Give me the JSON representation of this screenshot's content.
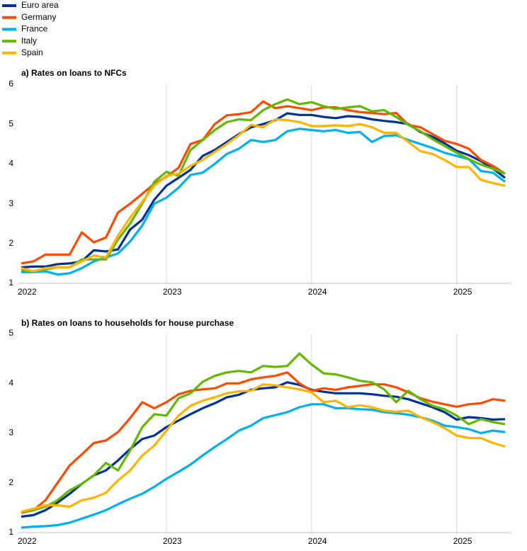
{
  "legend": [
    {
      "name": "Euro area",
      "color": "#003299"
    },
    {
      "name": "Germany",
      "color": "#ff4b00"
    },
    {
      "name": "France",
      "color": "#00b1ea"
    },
    {
      "name": "Italy",
      "color": "#65b800"
    },
    {
      "name": "Spain",
      "color": "#ffb400"
    }
  ],
  "chart_data": [
    {
      "type": "line",
      "title": "a) Rates on loans to NFCs",
      "categories": [
        "2022",
        null,
        null,
        null,
        null,
        null,
        null,
        null,
        null,
        null,
        null,
        null,
        "2023",
        null,
        null,
        null,
        null,
        null,
        null,
        null,
        null,
        null,
        null,
        null,
        "2024",
        null,
        null,
        null,
        null,
        null,
        null,
        null,
        null,
        null,
        null,
        null,
        "2025",
        null,
        null,
        null,
        null
      ],
      "ylim": [
        1,
        6
      ],
      "yticks": [
        1,
        2,
        3,
        4,
        5,
        6
      ],
      "grid": "x",
      "series": [
        {
          "values": [
            1.4,
            1.42,
            1.42,
            1.48,
            1.5,
            1.55,
            1.83,
            1.8,
            1.85,
            2.35,
            2.6,
            3.1,
            3.45,
            3.65,
            3.85,
            4.2,
            4.35,
            4.55,
            4.75,
            4.92,
            5.0,
            5.1,
            5.27,
            5.23,
            5.23,
            5.18,
            5.15,
            5.2,
            5.18,
            5.12,
            5.08,
            5.05,
            5.0,
            4.8,
            4.68,
            4.52,
            4.33,
            4.22,
            4.07,
            3.88,
            3.65
          ]
        },
        {
          "values": [
            1.5,
            1.55,
            1.72,
            1.72,
            1.72,
            2.28,
            2.03,
            2.15,
            2.78,
            3.0,
            3.25,
            3.5,
            3.68,
            3.9,
            4.5,
            4.6,
            5.0,
            5.22,
            5.25,
            5.3,
            5.57,
            5.4,
            5.45,
            5.4,
            5.35,
            5.42,
            5.42,
            5.35,
            5.3,
            5.28,
            5.25,
            5.28,
            4.98,
            4.92,
            4.75,
            4.58,
            4.5,
            4.38,
            4.1,
            3.95,
            3.75
          ]
        },
        {
          "values": [
            1.28,
            1.28,
            1.3,
            1.22,
            1.25,
            1.38,
            1.55,
            1.65,
            1.75,
            2.05,
            2.45,
            3.0,
            3.15,
            3.4,
            3.72,
            3.78,
            4.0,
            4.25,
            4.38,
            4.6,
            4.55,
            4.6,
            4.82,
            4.88,
            4.85,
            4.82,
            4.85,
            4.78,
            4.8,
            4.55,
            4.7,
            4.72,
            4.6,
            4.5,
            4.4,
            4.28,
            4.2,
            4.12,
            3.82,
            3.78,
            3.55
          ]
        },
        {
          "values": [
            1.32,
            1.3,
            1.35,
            1.4,
            1.4,
            1.6,
            1.6,
            1.6,
            2.1,
            2.5,
            3.0,
            3.55,
            3.8,
            3.7,
            4.35,
            4.6,
            4.85,
            5.05,
            5.12,
            5.1,
            5.35,
            5.5,
            5.62,
            5.5,
            5.55,
            5.45,
            5.38,
            5.42,
            5.45,
            5.32,
            5.35,
            5.18,
            4.98,
            4.82,
            4.62,
            4.45,
            4.28,
            4.12,
            3.98,
            3.88,
            3.75
          ]
        },
        {
          "values": [
            1.38,
            1.3,
            1.38,
            1.4,
            1.4,
            1.55,
            1.7,
            1.65,
            2.2,
            2.65,
            3.05,
            3.45,
            3.7,
            3.75,
            3.95,
            4.1,
            4.3,
            4.5,
            4.72,
            4.98,
            4.92,
            5.12,
            5.1,
            5.05,
            4.95,
            4.95,
            4.97,
            4.95,
            5.0,
            4.92,
            4.78,
            4.78,
            4.55,
            4.32,
            4.25,
            4.1,
            3.92,
            3.92,
            3.6,
            3.52,
            3.45
          ]
        }
      ]
    },
    {
      "type": "line",
      "title": "b) Rates on loans to households for house purchase",
      "categories": [
        "2022",
        null,
        null,
        null,
        null,
        null,
        null,
        null,
        null,
        null,
        null,
        null,
        "2023",
        null,
        null,
        null,
        null,
        null,
        null,
        null,
        null,
        null,
        null,
        null,
        "2024",
        null,
        null,
        null,
        null,
        null,
        null,
        null,
        null,
        null,
        null,
        null,
        "2025",
        null,
        null,
        null,
        null
      ],
      "ylim": [
        1,
        5
      ],
      "yticks": [
        1,
        2,
        3,
        4,
        5
      ],
      "grid": "x",
      "series": [
        {
          "values": [
            1.32,
            1.35,
            1.45,
            1.6,
            1.78,
            1.98,
            2.15,
            2.25,
            2.45,
            2.68,
            2.88,
            2.95,
            3.12,
            3.25,
            3.38,
            3.5,
            3.6,
            3.72,
            3.77,
            3.87,
            3.9,
            3.92,
            4.02,
            3.97,
            3.87,
            3.83,
            3.8,
            3.8,
            3.8,
            3.78,
            3.75,
            3.73,
            3.68,
            3.6,
            3.52,
            3.42,
            3.27,
            3.32,
            3.3,
            3.27,
            3.28
          ]
        },
        {
          "values": [
            1.4,
            1.45,
            1.65,
            2.0,
            2.35,
            2.57,
            2.8,
            2.85,
            3.02,
            3.3,
            3.62,
            3.5,
            3.62,
            3.78,
            3.85,
            3.88,
            3.9,
            4.0,
            4.0,
            4.08,
            4.12,
            4.15,
            4.22,
            4.0,
            3.85,
            3.9,
            3.87,
            3.92,
            3.95,
            3.98,
            3.98,
            3.92,
            3.82,
            3.7,
            3.63,
            3.58,
            3.53,
            3.58,
            3.6,
            3.68,
            3.65
          ]
        },
        {
          "values": [
            1.1,
            1.12,
            1.13,
            1.15,
            1.2,
            1.28,
            1.36,
            1.45,
            1.57,
            1.68,
            1.78,
            1.92,
            2.08,
            2.22,
            2.37,
            2.55,
            2.72,
            2.88,
            3.05,
            3.15,
            3.3,
            3.36,
            3.42,
            3.52,
            3.58,
            3.58,
            3.5,
            3.5,
            3.48,
            3.47,
            3.42,
            3.4,
            3.37,
            3.32,
            3.25,
            3.15,
            3.12,
            3.08,
            3.0,
            3.05,
            3.02
          ]
        },
        {
          "values": [
            1.42,
            1.45,
            1.52,
            1.65,
            1.85,
            1.98,
            2.15,
            2.4,
            2.25,
            2.65,
            3.12,
            3.38,
            3.35,
            3.7,
            3.8,
            4.03,
            4.15,
            4.22,
            4.25,
            4.22,
            4.35,
            4.33,
            4.35,
            4.6,
            4.38,
            4.2,
            4.18,
            4.12,
            4.05,
            4.02,
            3.88,
            3.62,
            3.85,
            3.68,
            3.55,
            3.48,
            3.35,
            3.18,
            3.28,
            3.22,
            3.18
          ]
        },
        {
          "values": [
            1.42,
            1.48,
            1.55,
            1.55,
            1.52,
            1.65,
            1.7,
            1.8,
            2.05,
            2.25,
            2.55,
            2.75,
            3.05,
            3.35,
            3.55,
            3.65,
            3.72,
            3.8,
            3.84,
            3.85,
            3.98,
            3.96,
            3.92,
            3.88,
            3.82,
            3.62,
            3.65,
            3.52,
            3.56,
            3.52,
            3.45,
            3.43,
            3.45,
            3.32,
            3.22,
            3.1,
            2.95,
            2.9,
            2.9,
            2.8,
            2.73
          ]
        }
      ]
    }
  ]
}
